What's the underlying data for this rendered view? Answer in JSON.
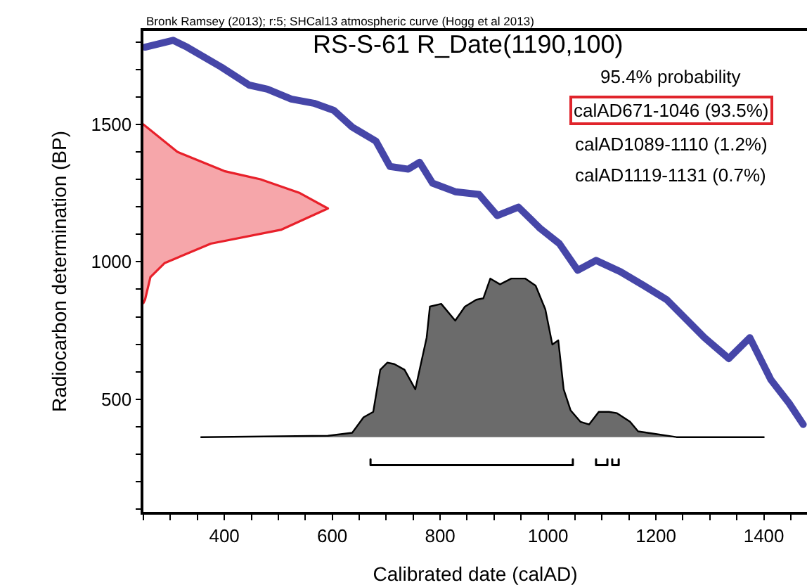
{
  "chart_data": {
    "type": "line",
    "title": "RS-S-61 R_Date(1190,100)",
    "xlabel": "Calibrated date (calAD)",
    "ylabel": "Radiocarbon determination (BP)",
    "annotations": [
      "Bronk Ramsey (2013); r:5; SHCal13 atmospheric curve (Hogg et al 2013)",
      "95.4% probability",
      "calAD671-1046 (93.5%)",
      "calAD1089-1110 (1.2%)",
      "calAD1119-1131 (0.7%)"
    ],
    "xlim": [
      250,
      1480
    ],
    "ylim": [
      90,
      1840
    ],
    "xticks": [
      {
        "value": 250,
        "label": null
      },
      {
        "value": 300,
        "label": null
      },
      {
        "value": 350,
        "label": null
      },
      400,
      {
        "value": 450,
        "label": null
      },
      {
        "value": 500,
        "label": null
      },
      {
        "value": 550,
        "label": null
      },
      600,
      {
        "value": 650,
        "label": null
      },
      {
        "value": 700,
        "label": null
      },
      {
        "value": 750,
        "label": null
      },
      800,
      {
        "value": 850,
        "label": null
      },
      {
        "value": 900,
        "label": null
      },
      {
        "value": 950,
        "label": null
      },
      1000,
      {
        "value": 1050,
        "label": null
      },
      {
        "value": 1100,
        "label": null
      },
      {
        "value": 1150,
        "label": null
      },
      1200,
      {
        "value": 1250,
        "label": null
      },
      {
        "value": 1300,
        "label": null
      },
      {
        "value": 1350,
        "label": null
      },
      1400,
      {
        "value": 1450,
        "label": null
      }
    ],
    "yticks": [
      {
        "value": 100,
        "label": null
      },
      {
        "value": 200,
        "label": null
      },
      {
        "value": 300,
        "label": null
      },
      {
        "value": 400,
        "label": null
      },
      500,
      {
        "value": 600,
        "label": null
      },
      {
        "value": 700,
        "label": null
      },
      {
        "value": 800,
        "label": null
      },
      {
        "value": 900,
        "label": null
      },
      1000,
      {
        "value": 1100,
        "label": null
      },
      {
        "value": 1200,
        "label": null
      },
      {
        "value": 1300,
        "label": null
      },
      {
        "value": 1400,
        "label": null
      },
      1500,
      {
        "value": 1600,
        "label": null
      },
      {
        "value": 1700,
        "label": null
      },
      {
        "value": 1800,
        "label": null
      }
    ],
    "grid": false,
    "marker": "none",
    "line_style": "solid",
    "series": [
      {
        "color": "#4646a8",
        "x": [
          253,
          305,
          331,
          394,
          446,
          480,
          524,
          566,
          603,
          637,
          681,
          707,
          741,
          762,
          786,
          828,
          872,
          906,
          945,
          985,
          1021,
          1055,
          1089,
          1134,
          1178,
          1220,
          1256,
          1290,
          1335,
          1374,
          1413,
          1447,
          1473
        ],
        "values": [
          1781,
          1806,
          1781,
          1709,
          1643,
          1628,
          1592,
          1577,
          1551,
          1490,
          1439,
          1347,
          1337,
          1362,
          1286,
          1255,
          1245,
          1168,
          1199,
          1122,
          1066,
          969,
          1005,
          964,
          913,
          862,
          791,
          724,
          648,
          724,
          571,
          485,
          408
        ]
      },
      {
        "type": "area",
        "color": "#e8202a",
        "x": [
          250,
          313,
          400,
          467,
          540,
          592,
          506,
          375,
          289,
          263,
          253,
          250
        ],
        "values": [
          1500,
          1400,
          1330,
          1300,
          1250,
          1194,
          1117,
          1066,
          995,
          944,
          862,
          850
        ]
      },
      {
        "type": "area",
        "color": "#6b6b6b",
        "x": [
          357,
          592,
          637,
          658,
          676,
          689,
          702,
          715,
          734,
          754,
          775,
          781,
          802,
          828,
          846,
          867,
          880,
          893,
          911,
          932,
          958,
          977,
          995,
          1008,
          1019,
          1029,
          1042,
          1060,
          1076,
          1094,
          1113,
          1128,
          1152,
          1167,
          1204,
          1238,
          1400
        ],
        "values": [
          362,
          367,
          378,
          434,
          454,
          607,
          633,
          628,
          607,
          536,
          724,
          837,
          847,
          786,
          837,
          862,
          867,
          939,
          918,
          939,
          939,
          913,
          827,
          699,
          714,
          536,
          459,
          418,
          408,
          454,
          454,
          449,
          418,
          383,
          372,
          362,
          362
        ]
      },
      {
        "color": "#000000",
        "x": [
          671,
          671,
          1046,
          1046,
          null,
          1089,
          1089,
          1110,
          1110,
          null,
          1119,
          1119,
          1131,
          1131
        ],
        "values": [
          281,
          260,
          260,
          281,
          null,
          281,
          260,
          260,
          281,
          null,
          281,
          260,
          260,
          281
        ]
      }
    ]
  }
}
